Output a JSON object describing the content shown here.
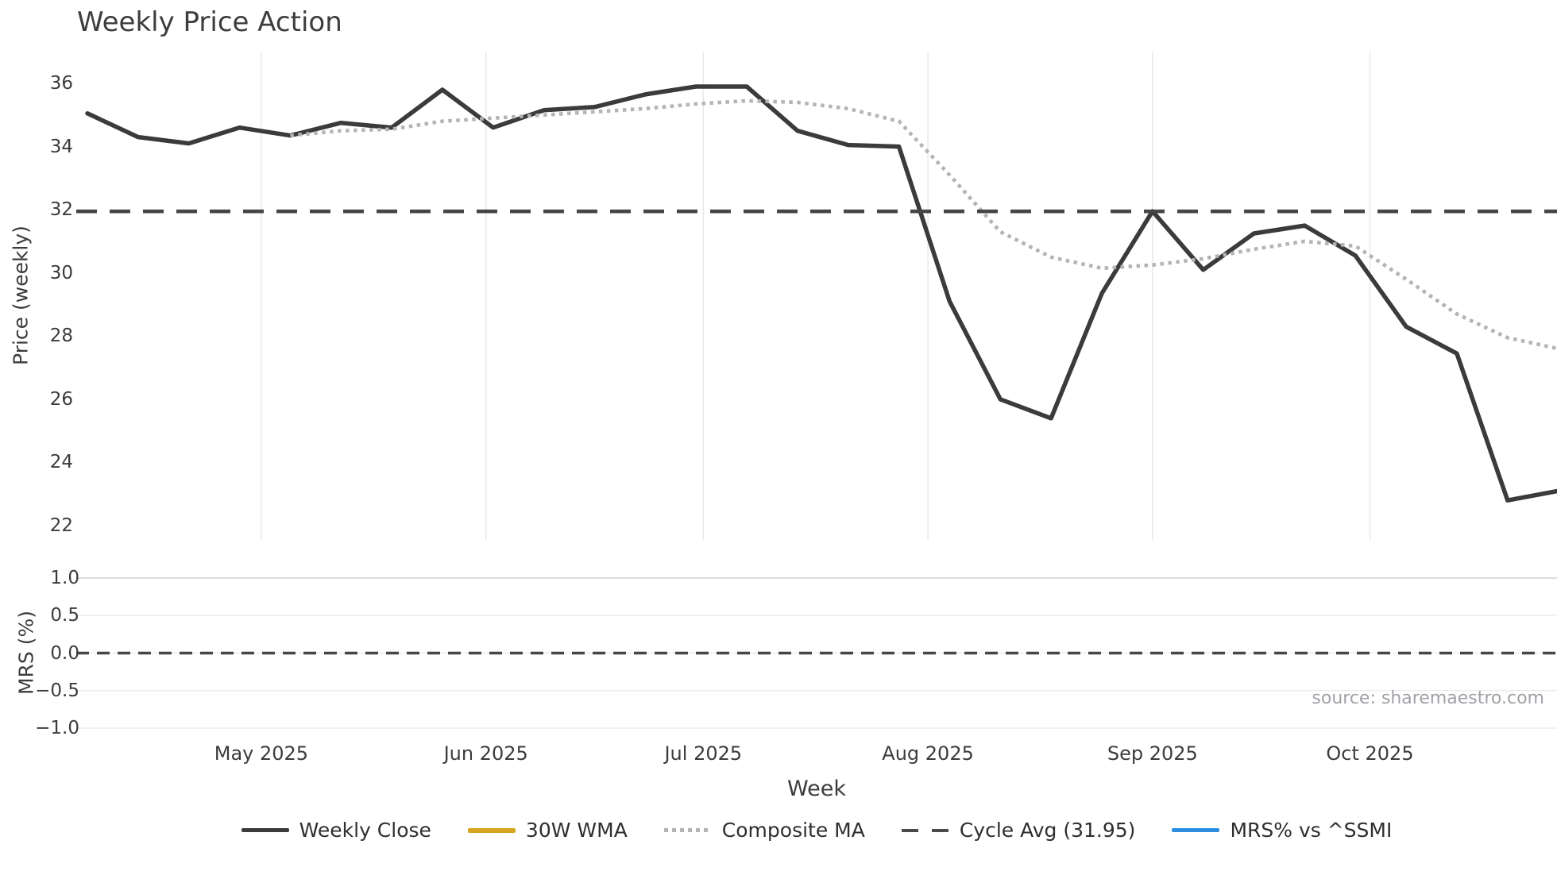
{
  "title": "Weekly Price Action",
  "source_note": "source: sharemaestro.com",
  "price_axis": {
    "label": "Price (weekly)",
    "ticks": [
      "36",
      "34",
      "32",
      "30",
      "28",
      "26",
      "24",
      "22"
    ]
  },
  "mrs_axis": {
    "label": "MRS (%)",
    "ticks": [
      "1.0",
      "0.5",
      "0.0",
      "−0.5",
      "−1.0"
    ]
  },
  "x_axis": {
    "label": "Week",
    "ticks": [
      {
        "label": "May 2025",
        "date": "2025-05-01"
      },
      {
        "label": "Jun 2025",
        "date": "2025-06-01"
      },
      {
        "label": "Jul 2025",
        "date": "2025-07-01"
      },
      {
        "label": "Aug 2025",
        "date": "2025-08-01"
      },
      {
        "label": "Sep 2025",
        "date": "2025-09-01"
      },
      {
        "label": "Oct 2025",
        "date": "2025-10-01"
      }
    ]
  },
  "legend": {
    "items": [
      {
        "label": "Weekly Close",
        "swatch": "solid-dark"
      },
      {
        "label": "30W WMA",
        "swatch": "solid-gold"
      },
      {
        "label": "Composite MA",
        "swatch": "dotted-gray"
      },
      {
        "label": "Cycle Avg (31.95)",
        "swatch": "dashed-dark"
      },
      {
        "label": "MRS% vs ^SSMI",
        "swatch": "solid-blue"
      }
    ]
  },
  "colors": {
    "line_dark": "#3b3b3b",
    "line_dotted": "#b4b4b4",
    "line_dashed": "#454545",
    "line_gold": "#d9a41e",
    "line_blue": "#2b8de0",
    "grid_v": "#e9ebf0",
    "grid_h": "#ededf1",
    "grid_strong": "#d8d8dc",
    "text": "#3c3c3c",
    "text_muted": "#a1a1a8"
  },
  "chart_data": {
    "type": "line",
    "title": "Weekly Price Action",
    "xlabel": "Week",
    "x_tick_labels": [
      "May 2025",
      "Jun 2025",
      "Jul 2025",
      "Aug 2025",
      "Sep 2025",
      "Oct 2025"
    ],
    "weeks": [
      "2025-04-07",
      "2025-04-14",
      "2025-04-21",
      "2025-04-28",
      "2025-05-05",
      "2025-05-12",
      "2025-05-19",
      "2025-05-26",
      "2025-06-02",
      "2025-06-09",
      "2025-06-16",
      "2025-06-23",
      "2025-06-30",
      "2025-07-07",
      "2025-07-14",
      "2025-07-21",
      "2025-07-28",
      "2025-08-04",
      "2025-08-11",
      "2025-08-18",
      "2025-08-25",
      "2025-09-01",
      "2025-09-08",
      "2025-09-15",
      "2025-09-22",
      "2025-09-29",
      "2025-10-06",
      "2025-10-13",
      "2025-10-20",
      "2025-10-27"
    ],
    "panels": [
      {
        "name": "price",
        "ylabel": "Price (weekly)",
        "y_ticks": [
          36,
          34,
          32,
          30,
          28,
          26,
          24,
          22
        ],
        "series": [
          {
            "name": "Weekly Close",
            "style": "solid",
            "color_key": "line_dark",
            "x_key": "weeks",
            "values": [
              35.05,
              34.3,
              34.1,
              34.6,
              34.35,
              34.75,
              34.6,
              35.8,
              34.6,
              35.15,
              35.25,
              35.65,
              35.9,
              35.9,
              34.5,
              34.05,
              34.0,
              29.1,
              26.0,
              25.4,
              29.35,
              31.95,
              30.1,
              31.25,
              31.5,
              30.55,
              28.3,
              27.45,
              22.8,
              23.1
            ]
          },
          {
            "name": "Composite MA",
            "style": "dotted",
            "color_key": "line_dotted",
            "x": [
              "2025-05-05",
              "2025-05-12",
              "2025-05-19",
              "2025-05-26",
              "2025-06-02",
              "2025-06-09",
              "2025-06-16",
              "2025-06-23",
              "2025-06-30",
              "2025-07-07",
              "2025-07-14",
              "2025-07-21",
              "2025-07-28",
              "2025-08-04",
              "2025-08-11",
              "2025-08-18",
              "2025-08-25",
              "2025-09-01",
              "2025-09-08",
              "2025-09-15",
              "2025-09-22",
              "2025-09-29",
              "2025-10-06",
              "2025-10-13",
              "2025-10-20",
              "2025-10-27"
            ],
            "values": [
              34.35,
              34.5,
              34.55,
              34.8,
              34.9,
              35.0,
              35.1,
              35.2,
              35.35,
              35.45,
              35.4,
              35.2,
              34.8,
              33.1,
              31.3,
              30.5,
              30.15,
              30.25,
              30.45,
              30.75,
              31.0,
              30.85,
              29.8,
              28.7,
              27.95,
              27.6
            ]
          },
          {
            "name": "Cycle Avg (31.95)",
            "style": "dashed-horizontal",
            "color_key": "line_dashed",
            "value": 31.95
          },
          {
            "name": "30W WMA",
            "style": "solid",
            "color_key": "line_gold",
            "note": "legend entry only — not visible in plotted range"
          }
        ]
      },
      {
        "name": "mrs",
        "ylabel": "MRS (%)",
        "y_ticks": [
          1.0,
          0.5,
          0.0,
          -0.5,
          -1.0
        ],
        "series": [
          {
            "name": "Zero Line",
            "style": "dashed-horizontal",
            "color_key": "line_dashed",
            "value": 0.0
          },
          {
            "name": "MRS% vs ^SSMI",
            "style": "solid",
            "color_key": "line_blue",
            "note": "legend entry only — not visible in plotted range"
          }
        ]
      }
    ]
  }
}
